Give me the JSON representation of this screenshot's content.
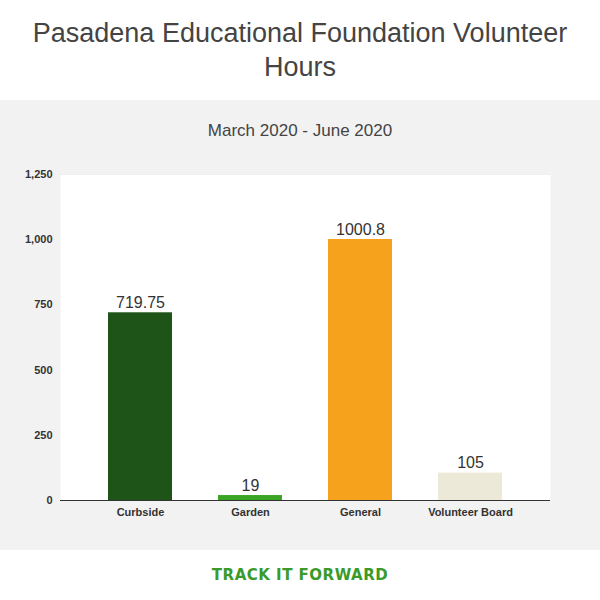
{
  "chart_data": {
    "type": "bar",
    "title": "Pasadena Educational Foundation Volunteer Hours",
    "subtitle": "March 2020 - June 2020",
    "categories": [
      "Curbside",
      "Garden",
      "General",
      "Volunteer Board"
    ],
    "values": [
      719.75,
      19,
      1000.8,
      105
    ],
    "colors": [
      "#1e5418",
      "#3aa524",
      "#f7a21c",
      "#ece9d8"
    ],
    "ylim": [
      0,
      1250
    ],
    "yticks": [
      0,
      250,
      500,
      750,
      {
        "value": 1000,
        "label": "1,000"
      },
      {
        "value": 1250,
        "label": "1,250"
      }
    ],
    "grid": true,
    "data_labels": true,
    "footer": "TRACK IT FORWARD"
  }
}
